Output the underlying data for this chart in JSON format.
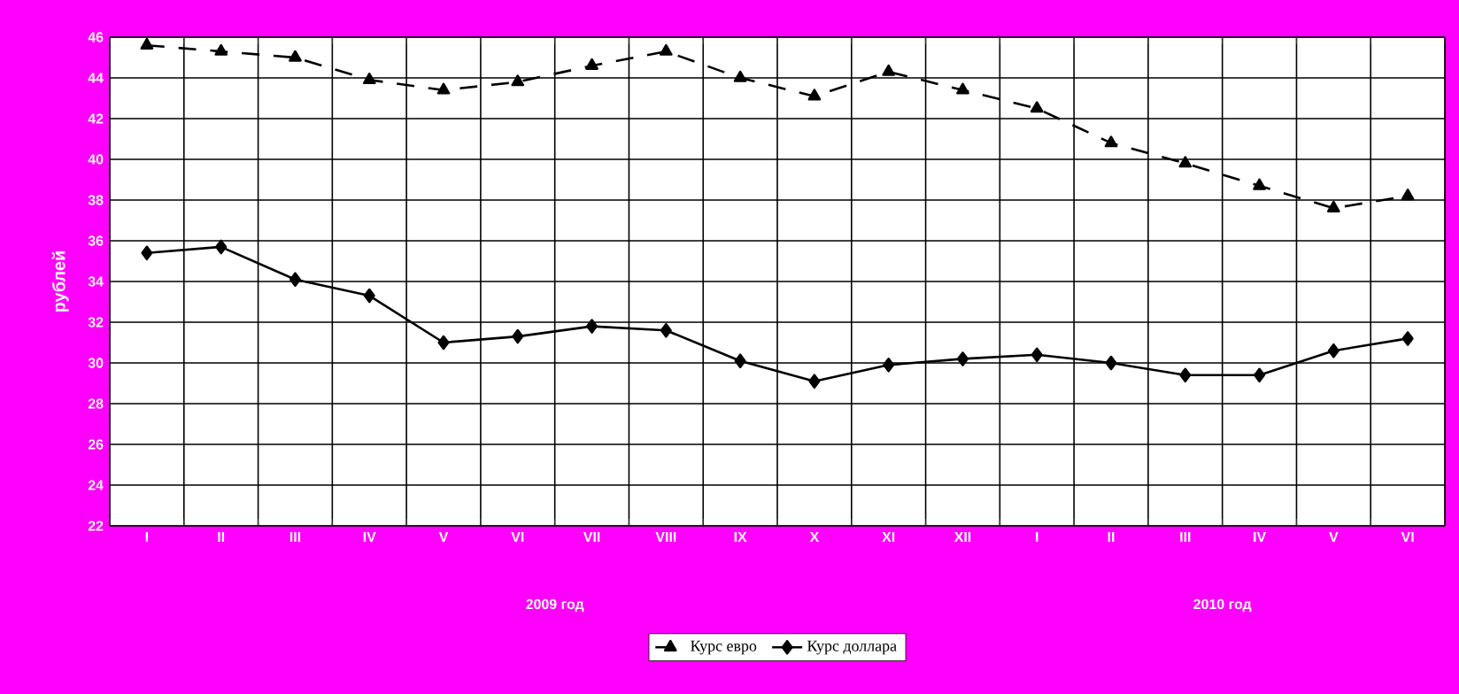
{
  "chart_data": {
    "type": "line",
    "categories": [
      "I",
      "II",
      "III",
      "IV",
      "V",
      "VI",
      "VII",
      "VIII",
      "IX",
      "X",
      "XI",
      "XII",
      "I",
      "II",
      "III",
      "IV",
      "V",
      "VI"
    ],
    "series": [
      {
        "name": "Курс евро",
        "color": "#000000",
        "marker": "triangle",
        "line_style": "dashed",
        "values": [
          45.6,
          45.3,
          45.0,
          43.9,
          43.4,
          43.8,
          44.6,
          45.3,
          44.0,
          43.1,
          44.3,
          43.4,
          42.5,
          40.8,
          39.8,
          38.7,
          37.6,
          38.2
        ]
      },
      {
        "name": "Курс доллара",
        "color": "#000000",
        "marker": "diamond",
        "line_style": "solid",
        "values": [
          35.4,
          35.7,
          34.1,
          33.3,
          31.0,
          31.3,
          31.8,
          31.6,
          30.1,
          29.1,
          29.9,
          30.2,
          30.4,
          30.0,
          29.4,
          29.4,
          30.6,
          31.2
        ]
      }
    ],
    "ylabel": "рублей",
    "annotations": [
      "2009 год",
      "2010 год"
    ],
    "ylim": [
      22,
      46
    ],
    "yticks": [
      22,
      24,
      26,
      28,
      30,
      32,
      34,
      36,
      38,
      40,
      42,
      44,
      46
    ],
    "grid": true,
    "legend": "bottom"
  }
}
